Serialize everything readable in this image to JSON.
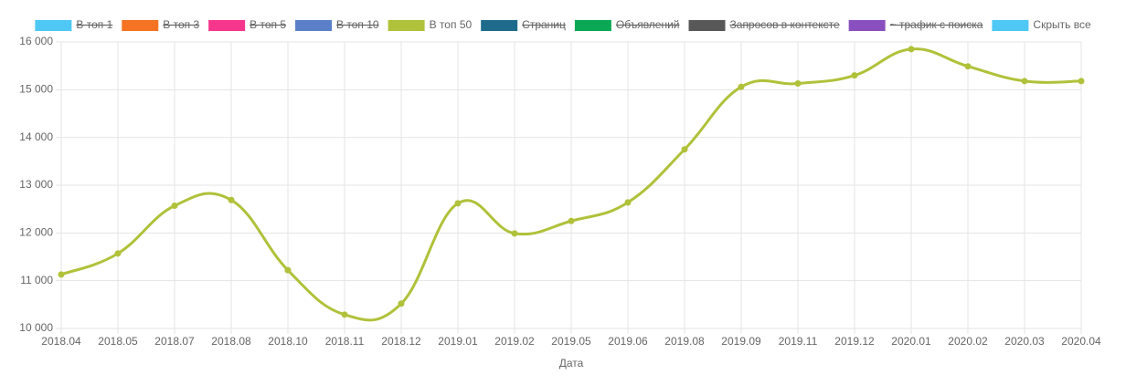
{
  "chart_data": {
    "type": "line",
    "x_label": "Дата",
    "categories": [
      "2018.04",
      "2018.05",
      "2018.07",
      "2018.08",
      "2018.10",
      "2018.11",
      "2018.12",
      "2019.01",
      "2019.02",
      "2019.05",
      "2019.06",
      "2019.08",
      "2019.09",
      "2019.11",
      "2019.12",
      "2020.01",
      "2020.02",
      "2020.03",
      "2020.04"
    ],
    "series": [
      {
        "name": "В топ 1",
        "color": "#4fc8f5",
        "hidden": true
      },
      {
        "name": "В топ 3",
        "color": "#f57323",
        "hidden": true
      },
      {
        "name": "В топ 5",
        "color": "#f5368c",
        "hidden": true
      },
      {
        "name": "В топ 10",
        "color": "#5b7fc9",
        "hidden": true
      },
      {
        "name": "В топ 50",
        "color": "#b0c13a",
        "hidden": false,
        "values": [
          11130,
          11570,
          12570,
          12690,
          11220,
          10290,
          10520,
          12620,
          11990,
          12250,
          12640,
          13750,
          15060,
          15130,
          15300,
          15850,
          15490,
          15180,
          15180
        ]
      },
      {
        "name": "Страниц",
        "color": "#1f6b8c",
        "hidden": true
      },
      {
        "name": "Объявлений",
        "color": "#0aa854",
        "hidden": true
      },
      {
        "name": "Запросов в контексте",
        "color": "#585858",
        "hidden": true
      },
      {
        "name": "~ трафик с поиска",
        "color": "#8a4fbf",
        "hidden": true
      }
    ],
    "legend_toggle": {
      "label": "Скрыть все",
      "color": "#4fc8f5"
    },
    "ylim": [
      10000,
      16000
    ],
    "yticks": [
      {
        "value": 10000,
        "label": "10 000"
      },
      {
        "value": 11000,
        "label": "11 000"
      },
      {
        "value": 12000,
        "label": "12 000"
      },
      {
        "value": 13000,
        "label": "13 000"
      },
      {
        "value": 14000,
        "label": "14 000"
      },
      {
        "value": 15000,
        "label": "15 000"
      },
      {
        "value": 16000,
        "label": "16 000"
      }
    ],
    "grid": true
  }
}
